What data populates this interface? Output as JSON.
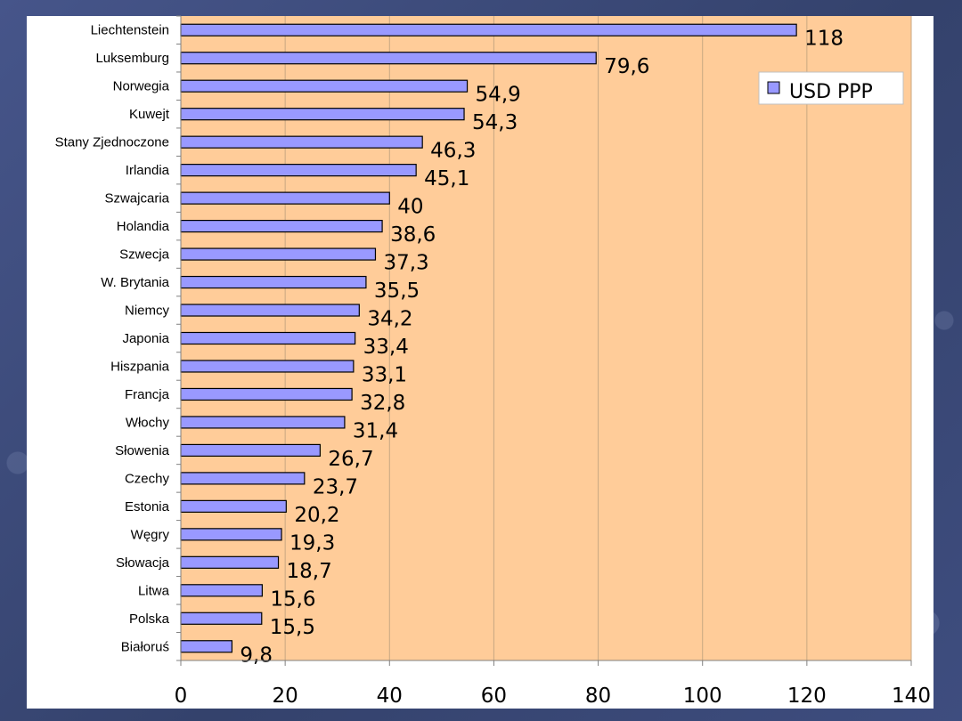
{
  "chart_data": {
    "type": "bar",
    "orientation": "horizontal",
    "categories": [
      "Liechtenstein",
      "Luksemburg",
      "Norwegia",
      "Kuwejt",
      "Stany Zjednoczone",
      "Irlandia",
      "Szwajcaria",
      "Holandia",
      "Szwecja",
      "W. Brytania",
      "Niemcy",
      "Japonia",
      "Hiszpania",
      "Francja",
      "Włochy",
      "Słowenia",
      "Czechy",
      "Estonia",
      "Węgry",
      "Słowacja",
      "Litwa",
      "Polska",
      "Białoruś"
    ],
    "values": [
      118,
      79.6,
      54.9,
      54.3,
      46.3,
      45.1,
      40,
      38.6,
      37.3,
      35.5,
      34.2,
      33.4,
      33.1,
      32.8,
      31.4,
      26.7,
      23.7,
      20.2,
      19.3,
      18.7,
      15.6,
      15.5,
      9.8
    ],
    "value_labels": [
      "118",
      "79,6",
      "54,9",
      "54,3",
      "46,3",
      "45,1",
      "40",
      "38,6",
      "37,3",
      "35,5",
      "34,2",
      "33,4",
      "33,1",
      "32,8",
      "31,4",
      "26,7",
      "23,7",
      "20,2",
      "19,3",
      "18,7",
      "15,6",
      "15,5",
      "9,8"
    ],
    "xlim": [
      0,
      140
    ],
    "xticks": [
      0,
      20,
      40,
      60,
      80,
      100,
      120,
      140
    ],
    "series_name": "USD PPP",
    "legend_position": "top-right",
    "grid": true,
    "title": "",
    "xlabel": "",
    "ylabel": ""
  },
  "colors": {
    "plot_background": "#FFCC99",
    "bar_fill": "#9999FF",
    "bar_stroke": "#000000",
    "gridline": "#C8A882",
    "axis": "#808080"
  }
}
